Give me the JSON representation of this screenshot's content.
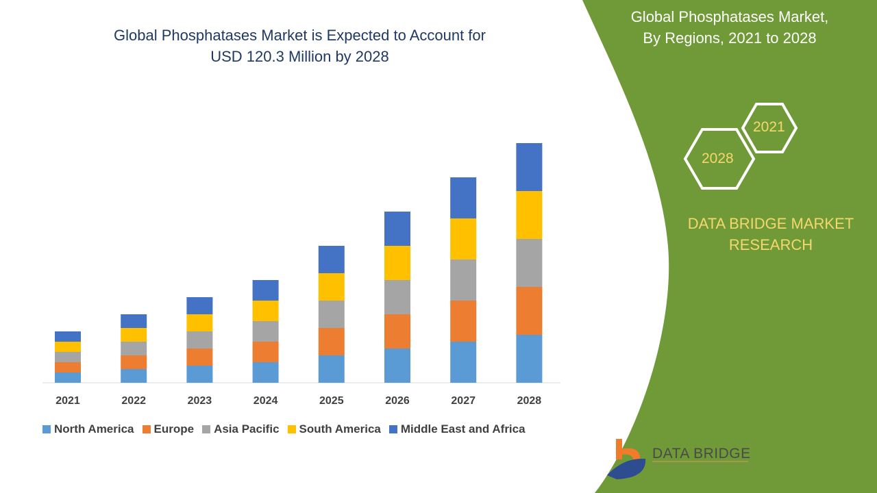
{
  "title_line1": "Global Phosphatases Market is Expected to Account for",
  "title_line2": "USD 120.3 Million by 2028",
  "side_panel": {
    "title_line1": "Global Phosphatases Market,",
    "title_line2": "By Regions, 2021 to 2028",
    "hex_years": [
      "2021",
      "2028"
    ],
    "brand_line1": "DATA BRIDGE MARKET",
    "brand_line2": "RESEARCH",
    "logo_text": "DATA BRIDGE",
    "logo_subtext": "MARKET RESEARCH",
    "panel_color": "#6f9a37"
  },
  "chart_data": {
    "type": "bar",
    "stacked": true,
    "title": "Global Phosphatases Market is Expected to Account for USD 120.3 Million by 2028",
    "xlabel": "",
    "ylabel": "",
    "y_axis_shown": false,
    "grid": false,
    "legend_position": "bottom",
    "ylim": [
      0,
      75
    ],
    "categories": [
      "2021",
      "2022",
      "2023",
      "2024",
      "2025",
      "2026",
      "2027",
      "2028"
    ],
    "series": [
      {
        "name": "North America",
        "color": "#5b9bd5",
        "values": [
          3,
          4,
          5,
          6,
          8,
          10,
          12,
          14
        ]
      },
      {
        "name": "Europe",
        "color": "#ed7d31",
        "values": [
          3,
          4,
          5,
          6,
          8,
          10,
          12,
          14
        ]
      },
      {
        "name": "Asia Pacific",
        "color": "#a5a5a5",
        "values": [
          3,
          4,
          5,
          6,
          8,
          10,
          12,
          14
        ]
      },
      {
        "name": "South America",
        "color": "#ffc000",
        "values": [
          3,
          4,
          5,
          6,
          8,
          10,
          12,
          14
        ]
      },
      {
        "name": "Middle East and Africa",
        "color": "#4472c4",
        "values": [
          3,
          4,
          5,
          6,
          8,
          10,
          12,
          14
        ]
      }
    ]
  }
}
